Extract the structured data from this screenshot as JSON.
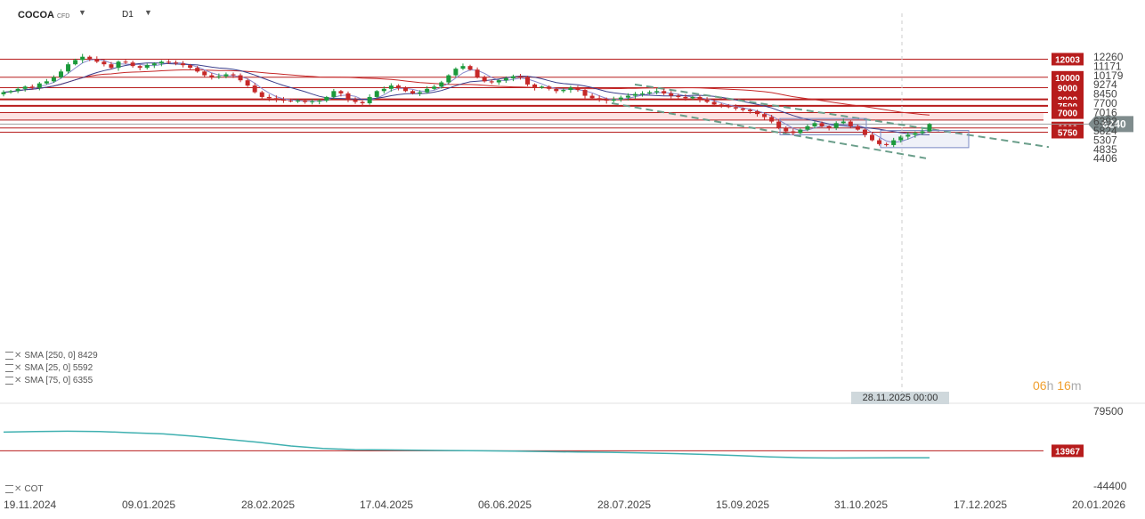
{
  "header": {
    "symbol": "COCOA",
    "instrument_type": "CFD",
    "timeframe": "D1"
  },
  "indicators": [
    {
      "name": "SMA",
      "params": "[250, 0]",
      "value": "8429",
      "color": "#c62828"
    },
    {
      "name": "SMA",
      "params": "[25, 0]",
      "value": "5592",
      "color": "#8888cc"
    },
    {
      "name": "SMA",
      "params": "[75, 0]",
      "value": "6355",
      "color": "#3b3f8c"
    }
  ],
  "sub_indicator": {
    "name": "COT",
    "color": "#3fb0b0"
  },
  "countdown": {
    "hours": "06",
    "h_unit": "h",
    "minutes": "16",
    "m_unit": "m"
  },
  "crosshair_label": "28.11.2025 00:00",
  "current_price": {
    "value": "6240",
    "color": "#7f8c8d"
  },
  "chart_data": {
    "type": "candlestick",
    "title": "COCOA",
    "ylim": [
      4406,
      12750
    ],
    "y_ticks": [
      "12260",
      "11171",
      "10179",
      "9274",
      "8450",
      "7700",
      "7016",
      "6392",
      "5824",
      "5307",
      "4835",
      "4406"
    ],
    "x_ticks": [
      "19.11.2024",
      "09.01.2025",
      "28.02.2025",
      "17.04.2025",
      "06.06.2025",
      "28.07.2025",
      "15.09.2025",
      "31.10.2025",
      "17.12.2025",
      "20.01.2026"
    ],
    "horizontal_levels": [
      {
        "value": "12003",
        "color": "#b71c1c"
      },
      {
        "value": "10000",
        "color": "#b71c1c"
      },
      {
        "value": "9000",
        "color": "#b71c1c"
      },
      {
        "value": "8000",
        "color": "#b71c1c"
      },
      {
        "value": "7500",
        "color": "#b71c1c"
      },
      {
        "value": "7000",
        "color": "#b71c1c"
      },
      {
        "value": "6000",
        "color": "#b71c1c"
      },
      {
        "value": "5750",
        "color": "#b71c1c"
      }
    ],
    "shaded_zone": {
      "from": 6500,
      "to": 7000,
      "color": "#fde3e3"
    },
    "close_series": {
      "name": "COCOA",
      "start": "19.11.2024",
      "values": [
        8600,
        8700,
        8900,
        9100,
        9000,
        9400,
        9600,
        10000,
        10600,
        11400,
        11900,
        12300,
        12000,
        11700,
        11400,
        11000,
        11700,
        11600,
        11200,
        11000,
        11300,
        11500,
        11700,
        11600,
        11500,
        11300,
        11000,
        10600,
        10200,
        10000,
        10100,
        10300,
        10200,
        9700,
        9200,
        8600,
        8200,
        8100,
        8000,
        7900,
        7850,
        7900,
        7800,
        7850,
        7900,
        8200,
        8700,
        8500,
        8000,
        7800,
        7700,
        8200,
        8700,
        8900,
        9200,
        9000,
        8700,
        8500,
        8600,
        8900,
        9100,
        9500,
        10200,
        10900,
        11200,
        10800,
        10000,
        9600,
        9500,
        9700,
        9900,
        10100,
        10000,
        9300,
        9000,
        9100,
        8900,
        8700,
        8800,
        9000,
        8800,
        8300,
        8100,
        8000,
        7900,
        8000,
        8150,
        8300,
        8450,
        8500,
        8600,
        8700,
        8500,
        8300,
        8200,
        8100,
        8200,
        8000,
        7800,
        7600,
        7500,
        7400,
        7300,
        7200,
        7100,
        6900,
        6700,
        6400,
        6000,
        5800,
        5700,
        5900,
        6100,
        6300,
        6100,
        6000,
        6300,
        6400,
        6100,
        5900,
        5600,
        5300,
        5100,
        5050,
        5300,
        5500,
        5600,
        5700,
        5800,
        6240
      ]
    },
    "cot_series": {
      "name": "COT",
      "ylim": [
        -44400,
        79500
      ],
      "y_ticks": [
        "79500",
        "-44400"
      ],
      "level": "13967",
      "values": [
        45000,
        46000,
        46500,
        46000,
        44000,
        42000,
        38000,
        33000,
        28000,
        22000,
        18000,
        16000,
        15500,
        15000,
        14500,
        14000,
        13500,
        12800,
        12000,
        11500,
        10500,
        9500,
        8000,
        6000,
        4000,
        2500,
        2000,
        2200,
        2500,
        2400
      ]
    }
  }
}
